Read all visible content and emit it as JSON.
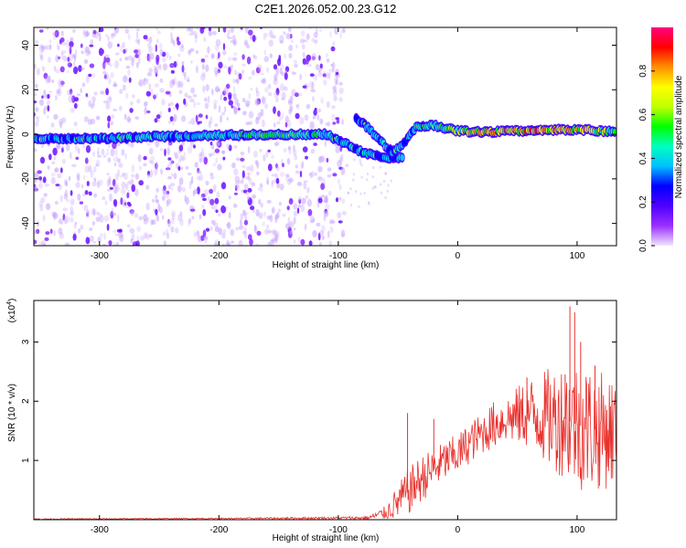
{
  "chart_data": [
    {
      "type": "heatmap",
      "title": "C2E1.2026.052.00.23.G12",
      "xlabel": "Height of straight line (km)",
      "ylabel": "Frequency (Hz)",
      "xlim": [
        -355,
        133
      ],
      "ylim": [
        -50,
        48
      ],
      "xticks": [
        -300,
        -200,
        -100,
        0,
        100
      ],
      "yticks": [
        -40,
        -20,
        0,
        20,
        40
      ],
      "xtick_labels": [
        "-300",
        "-200",
        "-100",
        "0",
        "100"
      ],
      "ytick_labels": [
        "-40",
        "-20",
        "0",
        "20",
        "40"
      ],
      "colorbar": {
        "label": "Normalized spectral amplitude",
        "range": [
          0,
          1
        ],
        "ticks": [
          0.0,
          0.2,
          0.4,
          0.6,
          0.8
        ],
        "tick_labels": [
          "0.0",
          "0.2",
          "0.4",
          "0.6",
          "0.8"
        ],
        "colormap": [
          "#f0e6ff",
          "#9b30ff",
          "#5000ff",
          "#0000ff",
          "#00c0ff",
          "#00ffc0",
          "#00ff00",
          "#c0ff00",
          "#ffff00",
          "#ff9000",
          "#ff0000",
          "#ff0080"
        ]
      },
      "main_trace": [
        {
          "x": -355,
          "f": -2,
          "amp": 0.35
        },
        {
          "x": -300,
          "f": -2,
          "amp": 0.38
        },
        {
          "x": -250,
          "f": -1,
          "amp": 0.4
        },
        {
          "x": -200,
          "f": -0.5,
          "amp": 0.42
        },
        {
          "x": -150,
          "f": 0,
          "amp": 0.45
        },
        {
          "x": -110,
          "f": 0,
          "amp": 0.42
        },
        {
          "x": -95,
          "f": -4,
          "amp": 0.4
        },
        {
          "x": -80,
          "f": -8,
          "amp": 0.38
        },
        {
          "x": -60,
          "f": -11,
          "amp": 0.35
        },
        {
          "x": -45,
          "f": -10,
          "amp": 0.35
        }
      ],
      "secondary_trace": [
        {
          "x": -85,
          "f": 7,
          "amp": 0.32
        },
        {
          "x": -75,
          "f": 3,
          "amp": 0.35
        },
        {
          "x": -65,
          "f": -3,
          "amp": 0.38
        },
        {
          "x": -55,
          "f": -8,
          "amp": 0.35
        },
        {
          "x": -45,
          "f": -4,
          "amp": 0.35
        },
        {
          "x": -35,
          "f": 3,
          "amp": 0.4
        },
        {
          "x": -20,
          "f": 4,
          "amp": 0.45
        },
        {
          "x": 0,
          "f": 1.5,
          "amp": 0.6
        },
        {
          "x": 20,
          "f": 1,
          "amp": 0.75
        },
        {
          "x": 50,
          "f": 1.5,
          "amp": 0.8
        },
        {
          "x": 80,
          "f": 2,
          "amp": 0.78
        },
        {
          "x": 110,
          "f": 2,
          "amp": 0.7
        },
        {
          "x": 133,
          "f": 1,
          "amp": 0.55
        }
      ]
    },
    {
      "type": "line",
      "xlabel": "Height of straight line (km)",
      "ylabel": "SNR (10 * v/v)",
      "ylabel_scale": "(x10^4)",
      "scale_base": "(x10",
      "scale_exp": "4",
      "scale_close": ")",
      "color": "#e8302c",
      "xlim": [
        -355,
        133
      ],
      "ylim": [
        0,
        3.7
      ],
      "xticks": [
        -300,
        -200,
        -100,
        0,
        100
      ],
      "yticks": [
        1,
        2,
        3
      ],
      "xtick_labels": [
        "-300",
        "-200",
        "-100",
        "0",
        "100"
      ],
      "ytick_labels": [
        "1",
        "2",
        "3"
      ],
      "envelope": {
        "x": [
          -355,
          -200,
          -100,
          -75,
          -60,
          -50,
          -40,
          -30,
          -20,
          -10,
          0,
          10,
          20,
          30,
          40,
          50,
          60,
          70,
          80,
          90,
          100,
          110,
          120,
          133
        ],
        "mean": [
          0.01,
          0.02,
          0.03,
          0.03,
          0.12,
          0.3,
          0.5,
          0.7,
          0.85,
          1.0,
          1.1,
          1.3,
          1.45,
          1.6,
          1.7,
          1.75,
          1.8,
          1.75,
          1.7,
          1.7,
          1.6,
          1.55,
          1.5,
          1.5
        ],
        "spread": [
          0.01,
          0.01,
          0.02,
          0.03,
          0.12,
          0.3,
          0.4,
          0.4,
          0.35,
          0.35,
          0.35,
          0.35,
          0.35,
          0.4,
          0.4,
          0.5,
          0.6,
          0.75,
          0.9,
          1.0,
          1.1,
          1.1,
          1.0,
          0.95
        ]
      },
      "peaks": [
        {
          "x": -42,
          "y": 1.8
        },
        {
          "x": -20,
          "y": 1.7
        },
        {
          "x": 58,
          "y": 2.4
        },
        {
          "x": 90,
          "y": 2.45
        },
        {
          "x": 94,
          "y": 3.6
        },
        {
          "x": 98,
          "y": 3.5
        },
        {
          "x": 103,
          "y": 3.0
        },
        {
          "x": 115,
          "y": 2.6
        }
      ]
    }
  ]
}
